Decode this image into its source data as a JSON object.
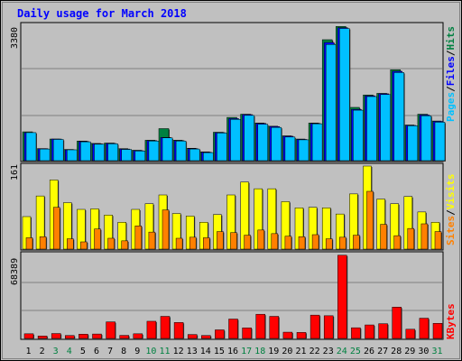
{
  "chart_data": [
    {
      "type": "bar",
      "title": "Daily usage for March 2018",
      "ylabel_top": "3380",
      "legend": [
        "Pages",
        "Files",
        "Hits"
      ],
      "categories": [
        "1",
        "2",
        "3",
        "4",
        "5",
        "6",
        "7",
        "8",
        "9",
        "10",
        "11",
        "12",
        "13",
        "14",
        "15",
        "16",
        "17",
        "18",
        "19",
        "20",
        "21",
        "22",
        "23",
        "24",
        "25",
        "26",
        "27",
        "28",
        "29",
        "30",
        "31"
      ],
      "weekend_days": [
        "3",
        "4",
        "10",
        "11",
        "17",
        "18",
        "24",
        "25",
        "31"
      ],
      "ylim": [
        0,
        3380
      ],
      "series": [
        {
          "name": "Hits",
          "color": "#008040",
          "values": [
            720,
            300,
            540,
            280,
            490,
            430,
            440,
            300,
            260,
            510,
            800,
            510,
            310,
            220,
            710,
            1080,
            1160,
            940,
            860,
            620,
            540,
            940,
            3020,
            3350,
            1330,
            1640,
            1680,
            2270,
            890,
            1160,
            990
          ]
        },
        {
          "name": "Files",
          "color": "#0000ff",
          "values": [
            700,
            300,
            540,
            270,
            480,
            420,
            430,
            290,
            250,
            500,
            580,
            500,
            300,
            210,
            700,
            1050,
            1150,
            930,
            850,
            610,
            530,
            930,
            2950,
            3320,
            1280,
            1620,
            1670,
            2230,
            880,
            1140,
            980
          ]
        },
        {
          "name": "Pages",
          "color": "#00c0ff",
          "values": [
            700,
            290,
            530,
            270,
            470,
            410,
            420,
            280,
            240,
            490,
            570,
            490,
            290,
            200,
            690,
            1030,
            1130,
            910,
            830,
            590,
            520,
            920,
            2900,
            3300,
            1260,
            1600,
            1650,
            2200,
            870,
            1120,
            960
          ]
        }
      ]
    },
    {
      "type": "bar",
      "ylabel_top": "161",
      "legend": [
        "Sites",
        "Visits"
      ],
      "ylim": [
        0,
        161
      ],
      "series": [
        {
          "name": "Visits",
          "color": "#ffff00",
          "values": [
            63,
            103,
            134,
            90,
            77,
            78,
            66,
            52,
            77,
            88,
            105,
            69,
            64,
            52,
            67,
            105,
            130,
            117,
            117,
            92,
            80,
            81,
            80,
            68,
            107,
            161,
            97,
            88,
            102,
            72,
            52
          ]
        },
        {
          "name": "Sites",
          "color": "#ff8000",
          "values": [
            22,
            24,
            81,
            20,
            14,
            39,
            21,
            16,
            45,
            33,
            76,
            21,
            23,
            22,
            34,
            32,
            27,
            37,
            30,
            25,
            24,
            28,
            20,
            23,
            27,
            112,
            48,
            26,
            40,
            49,
            34
          ]
        }
      ]
    },
    {
      "type": "bar",
      "ylabel_top": "68389",
      "legend": [
        "KBytes"
      ],
      "ylim": [
        0,
        68389
      ],
      "series": [
        {
          "name": "KBytes",
          "color": "#ff0000",
          "values": [
            3800,
            2000,
            4000,
            2400,
            3500,
            3600,
            13500,
            2500,
            3800,
            14000,
            18000,
            13000,
            3200,
            2400,
            7000,
            15800,
            8600,
            19700,
            18000,
            5100,
            4900,
            19000,
            18500,
            67800,
            8700,
            11000,
            12000,
            25500,
            7500,
            16500,
            12300
          ]
        }
      ]
    }
  ]
}
